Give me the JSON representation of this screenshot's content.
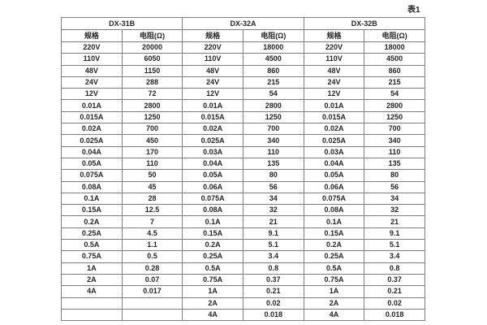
{
  "page": {
    "table_caption": "表1"
  },
  "table": {
    "groups": [
      {
        "name": "DX-31B",
        "spec_header": "规格",
        "resistance_header": "电阻(Ω)"
      },
      {
        "name": "DX-32A",
        "spec_header": "规格",
        "resistance_header": "电阻(Ω)"
      },
      {
        "name": "DX-32B",
        "spec_header": "规格",
        "resistance_header": "电阻(Ω)"
      }
    ],
    "rows": [
      [
        "220V",
        "20000",
        "220V",
        "18000",
        "220V",
        "18000"
      ],
      [
        "110V",
        "6050",
        "110V",
        "4500",
        "110V",
        "4500"
      ],
      [
        "48V",
        "1150",
        "48V",
        "860",
        "48V",
        "860"
      ],
      [
        "24V",
        "288",
        "24V",
        "215",
        "24V",
        "215"
      ],
      [
        "12V",
        "72",
        "12V",
        "54",
        "12V",
        "54"
      ],
      [
        "0.01A",
        "2800",
        "0.01A",
        "2800",
        "0.01A",
        "2800"
      ],
      [
        "0.015A",
        "1250",
        "0.015A",
        "1250",
        "0.015A",
        "1250"
      ],
      [
        "0.02A",
        "700",
        "0.02A",
        "700",
        "0.02A",
        "700"
      ],
      [
        "0.025A",
        "450",
        "0.025A",
        "340",
        "0.025A",
        "340"
      ],
      [
        "0.04A",
        "170",
        "0.03A",
        "110",
        "0.03A",
        "110"
      ],
      [
        "0.05A",
        "110",
        "0.04A",
        "135",
        "0.04A",
        "135"
      ],
      [
        "0.075A",
        "50",
        "0.05A",
        "80",
        "0.05A",
        "80"
      ],
      [
        "0.08A",
        "45",
        "0.06A",
        "56",
        "0.06A",
        "56"
      ],
      [
        "0.1A",
        "28",
        "0.075A",
        "34",
        "0.075A",
        "34"
      ],
      [
        "0.15A",
        "12.5",
        "0.08A",
        "32",
        "0.08A",
        "32"
      ],
      [
        "0.2A",
        "7",
        "0.1A",
        "21",
        "0.1A",
        "21"
      ],
      [
        "0.25A",
        "4.5",
        "0.15A",
        "9.1",
        "0.15A",
        "9.1"
      ],
      [
        "0.5A",
        "1.1",
        "0.2A",
        "5.1",
        "0.2A",
        "5.1"
      ],
      [
        "0.75A",
        "0.5",
        "0.25A",
        "3.4",
        "0.25A",
        "3.4"
      ],
      [
        "1A",
        "0.28",
        "0.5A",
        "0.8",
        "0.5A",
        "0.8"
      ],
      [
        "2A",
        "0.07",
        "0.75A",
        "0.37",
        "0.75A",
        "0.37"
      ],
      [
        "4A",
        "0.017",
        "1A",
        "0.21",
        "1A",
        "0.21"
      ],
      [
        "",
        "",
        "2A",
        "0.02",
        "2A",
        "0.02"
      ],
      [
        "",
        "",
        "4A",
        "0.018",
        "4A",
        "0.018"
      ]
    ],
    "colors": {
      "border": "#7f7f7f",
      "text": "#262626",
      "background": "#ffffff"
    }
  }
}
